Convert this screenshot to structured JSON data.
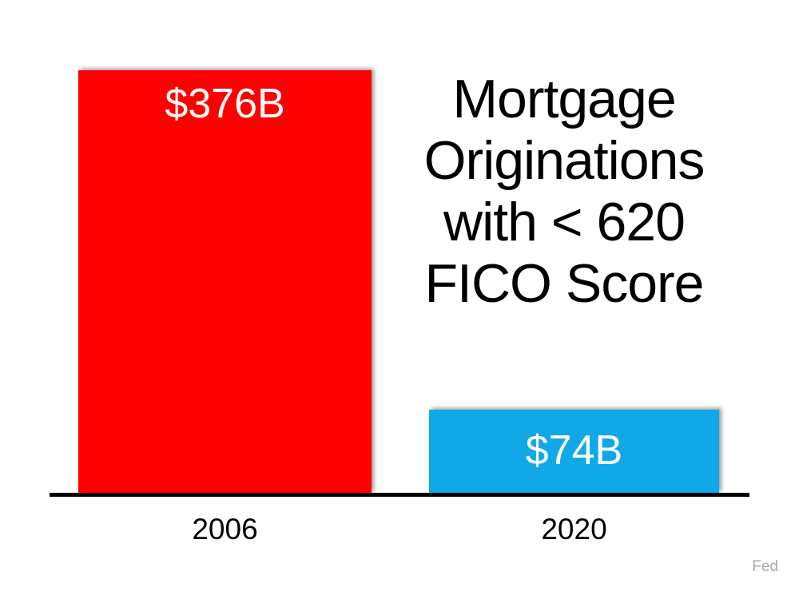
{
  "chart_data": {
    "type": "bar",
    "title": "Mortgage Originations with < 620 FICO Score",
    "categories": [
      "2006",
      "2020"
    ],
    "values": [
      376,
      74
    ],
    "value_unit": "billions of USD",
    "bar_labels": [
      "$376B",
      "$74B"
    ],
    "bar_colors": [
      "#FF0000",
      "#10A8E6"
    ],
    "ylim": [
      0,
      400
    ],
    "grid": false,
    "legend": false,
    "xlabel": "",
    "ylabel": "",
    "source": "Fed"
  },
  "title": {
    "lines": [
      "Mortgage",
      "Originations",
      "with < 620",
      "FICO Score"
    ]
  },
  "colors": {
    "axis": "#000000",
    "value_text": "#FFFFFF",
    "title_text": "#000000",
    "source_text": "#A8A8A8"
  }
}
